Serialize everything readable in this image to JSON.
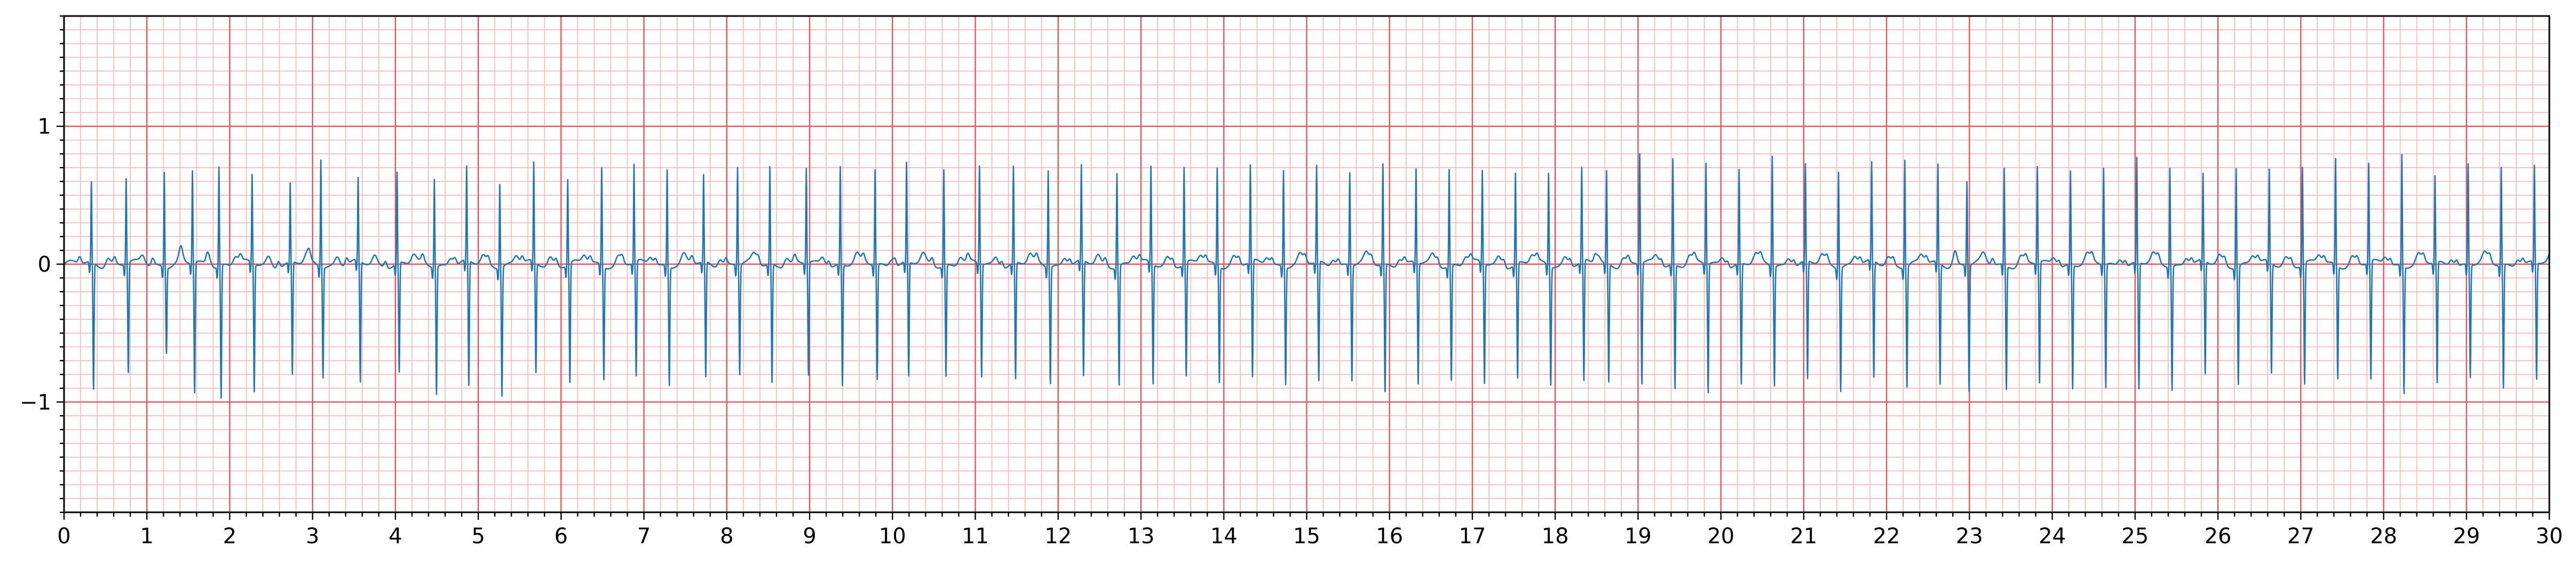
{
  "chart_data": {
    "type": "line",
    "title": "",
    "xlabel": "",
    "ylabel": "",
    "xlim": [
      0,
      30
    ],
    "ylim": [
      -1.8,
      1.8
    ],
    "grid": true,
    "legend": "none",
    "x_major_ticks": [
      0,
      1,
      2,
      3,
      4,
      5,
      6,
      7,
      8,
      9,
      10,
      11,
      12,
      13,
      14,
      15,
      16,
      17,
      18,
      19,
      20,
      21,
      22,
      23,
      24,
      25,
      26,
      27,
      28,
      29,
      30
    ],
    "x_tick_labels": [
      "0",
      "1",
      "2",
      "3",
      "4",
      "5",
      "6",
      "7",
      "8",
      "9",
      "10",
      "11",
      "12",
      "13",
      "14",
      "15",
      "16",
      "17",
      "18",
      "19",
      "20",
      "21",
      "22",
      "23",
      "24",
      "25",
      "26",
      "27",
      "28",
      "29",
      "30"
    ],
    "y_major_ticks": [
      -1,
      0,
      1
    ],
    "y_tick_labels": [
      "−1",
      "0",
      "1"
    ],
    "major_grid_x_step": 1,
    "major_grid_y_step": 1,
    "minor_grid_x_step": 0.2,
    "minor_grid_y_step": 0.1,
    "series": [
      {
        "values_description": "ECG-like trace, values approximated from the plot",
        "beats": [
          {
            "t": 0.33,
            "r": 0.58,
            "s": -0.92
          },
          {
            "t": 0.75,
            "r": 0.62,
            "s": -0.8
          },
          {
            "t": 1.21,
            "r": 0.69,
            "s": -0.62
          },
          {
            "t": 1.55,
            "r": 0.67,
            "s": -0.95
          },
          {
            "t": 1.87,
            "r": 0.72,
            "s": -0.97
          },
          {
            "t": 2.27,
            "r": 0.64,
            "s": -0.93
          },
          {
            "t": 2.73,
            "r": 0.57,
            "s": -0.82
          },
          {
            "t": 3.1,
            "r": 0.78,
            "s": -0.8
          },
          {
            "t": 3.55,
            "r": 0.6,
            "s": -0.88
          },
          {
            "t": 4.02,
            "r": 0.66,
            "s": -0.8
          },
          {
            "t": 4.47,
            "r": 0.64,
            "s": -0.93
          },
          {
            "t": 4.86,
            "r": 0.68,
            "s": -0.91
          },
          {
            "t": 5.26,
            "r": 0.61,
            "s": -0.94
          },
          {
            "t": 5.67,
            "r": 0.72,
            "s": -0.8
          },
          {
            "t": 6.08,
            "r": 0.62,
            "s": -0.87
          },
          {
            "t": 6.49,
            "r": 0.71,
            "s": -0.82
          },
          {
            "t": 6.88,
            "r": 0.71,
            "s": -0.84
          },
          {
            "t": 7.28,
            "r": 0.7,
            "s": -0.86
          },
          {
            "t": 7.72,
            "r": 0.63,
            "s": -0.84
          },
          {
            "t": 8.13,
            "r": 0.71,
            "s": -0.8
          },
          {
            "t": 8.52,
            "r": 0.71,
            "s": -0.86
          },
          {
            "t": 8.96,
            "r": 0.69,
            "s": -0.82
          },
          {
            "t": 9.37,
            "r": 0.71,
            "s": -0.88
          },
          {
            "t": 9.79,
            "r": 0.69,
            "s": -0.84
          },
          {
            "t": 10.17,
            "r": 0.72,
            "s": -0.83
          },
          {
            "t": 10.62,
            "r": 0.7,
            "s": -0.81
          },
          {
            "t": 11.05,
            "r": 0.71,
            "s": -0.82
          },
          {
            "t": 11.46,
            "r": 0.7,
            "s": -0.85
          },
          {
            "t": 11.88,
            "r": 0.7,
            "s": -0.85
          },
          {
            "t": 12.28,
            "r": 0.69,
            "s": -0.84
          },
          {
            "t": 12.71,
            "r": 0.68,
            "s": -0.87
          },
          {
            "t": 13.12,
            "r": 0.7,
            "s": -0.87
          },
          {
            "t": 13.52,
            "r": 0.7,
            "s": -0.83
          },
          {
            "t": 13.92,
            "r": 0.71,
            "s": -0.84
          },
          {
            "t": 14.32,
            "r": 0.7,
            "s": -0.85
          },
          {
            "t": 14.72,
            "r": 0.7,
            "s": -0.85
          },
          {
            "t": 15.12,
            "r": 0.7,
            "s": -0.87
          },
          {
            "t": 15.52,
            "r": 0.67,
            "s": -0.84
          },
          {
            "t": 15.92,
            "r": 0.73,
            "s": -0.93
          },
          {
            "t": 16.32,
            "r": 0.68,
            "s": -0.88
          },
          {
            "t": 16.72,
            "r": 0.7,
            "s": -0.84
          },
          {
            "t": 17.12,
            "r": 0.67,
            "s": -0.87
          },
          {
            "t": 17.52,
            "r": 0.66,
            "s": -0.84
          },
          {
            "t": 17.92,
            "r": 0.67,
            "s": -0.86
          },
          {
            "t": 18.32,
            "r": 0.68,
            "s": -0.88
          },
          {
            "t": 18.62,
            "r": 0.67,
            "s": -0.86
          },
          {
            "t": 19.02,
            "r": 0.8,
            "s": -0.88
          },
          {
            "t": 19.42,
            "r": 0.77,
            "s": -0.9
          },
          {
            "t": 19.82,
            "r": 0.73,
            "s": -0.94
          },
          {
            "t": 20.22,
            "r": 0.68,
            "s": -0.88
          },
          {
            "t": 20.62,
            "r": 0.8,
            "s": -0.87
          },
          {
            "t": 21.02,
            "r": 0.7,
            "s": -0.86
          },
          {
            "t": 21.42,
            "r": 0.7,
            "s": -0.9
          },
          {
            "t": 21.82,
            "r": 0.71,
            "s": -0.85
          },
          {
            "t": 22.22,
            "r": 0.78,
            "s": -0.88
          },
          {
            "t": 22.62,
            "r": 0.71,
            "s": -0.88
          },
          {
            "t": 22.97,
            "r": 0.61,
            "s": -0.92
          },
          {
            "t": 23.42,
            "r": 0.7,
            "s": -0.9
          },
          {
            "t": 23.82,
            "r": 0.7,
            "s": -0.88
          },
          {
            "t": 24.22,
            "r": 0.68,
            "s": -0.9
          },
          {
            "t": 24.62,
            "r": 0.7,
            "s": -0.9
          },
          {
            "t": 25.02,
            "r": 0.76,
            "s": -0.92
          },
          {
            "t": 25.42,
            "r": 0.72,
            "s": -0.9
          },
          {
            "t": 25.82,
            "r": 0.63,
            "s": -0.82
          },
          {
            "t": 26.22,
            "r": 0.72,
            "s": -0.86
          },
          {
            "t": 26.62,
            "r": 0.67,
            "s": -0.8
          },
          {
            "t": 27.02,
            "r": 0.71,
            "s": -0.88
          },
          {
            "t": 27.42,
            "r": 0.77,
            "s": -0.82
          },
          {
            "t": 27.82,
            "r": 0.72,
            "s": -0.86
          },
          {
            "t": 28.22,
            "r": 0.81,
            "s": -0.92
          },
          {
            "t": 28.62,
            "r": 0.63,
            "s": -0.88
          },
          {
            "t": 29.02,
            "r": 0.73,
            "s": -0.82
          },
          {
            "t": 29.42,
            "r": 0.71,
            "s": -0.9
          },
          {
            "t": 29.82,
            "r": 0.7,
            "s": -0.85
          }
        ],
        "color": "#1f77b4"
      }
    ]
  },
  "colors": {
    "major_grid": "#e8535a",
    "minor_grid": "#f7b5b8",
    "trace": "#1f77b4",
    "axes": "#000000"
  }
}
